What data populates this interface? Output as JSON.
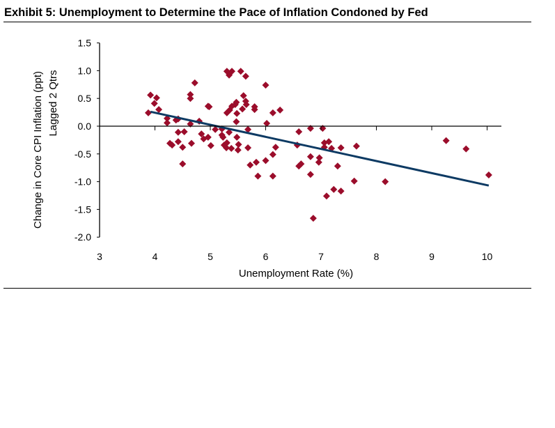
{
  "title": "Exhibit 5: Unemployment to Determine the Pace of Inflation Condoned by Fed",
  "chart_data": {
    "type": "scatter",
    "title": "Exhibit 5: Unemployment to Determine the Pace of Inflation Condoned by Fed",
    "xlabel": "Unemployment Rate (%)",
    "ylabel": [
      "Change in Core CPI Inflation (ppt)",
      "Lagged 2 Qtrs"
    ],
    "xlim": [
      3,
      10
    ],
    "ylim": [
      -2.0,
      1.5
    ],
    "xticks": [
      "3",
      "4",
      "5",
      "6",
      "7",
      "8",
      "9",
      "10"
    ],
    "yticks": [
      "1.5",
      "1.0",
      "0.5",
      "0.0",
      "-0.5",
      "-1.0",
      "-1.5",
      "-2.0"
    ],
    "grid": false,
    "marker_color": "#9b0d2b",
    "trend_color": "#0d3a63",
    "points": [
      [
        3.92,
        0.56
      ],
      [
        4.03,
        0.51
      ],
      [
        3.99,
        0.41
      ],
      [
        4.07,
        0.3
      ],
      [
        3.88,
        0.24
      ],
      [
        4.22,
        0.14
      ],
      [
        4.22,
        0.06
      ],
      [
        4.38,
        0.11
      ],
      [
        4.42,
        0.13
      ],
      [
        4.64,
        0.57
      ],
      [
        4.64,
        0.5
      ],
      [
        4.72,
        0.78
      ],
      [
        4.8,
        0.09
      ],
      [
        4.96,
        0.36
      ],
      [
        4.98,
        0.35
      ],
      [
        4.64,
        0.04
      ],
      [
        4.42,
        -0.11
      ],
      [
        4.53,
        -0.1
      ],
      [
        4.27,
        -0.31
      ],
      [
        4.31,
        -0.34
      ],
      [
        4.42,
        -0.28
      ],
      [
        4.5,
        -0.38
      ],
      [
        4.66,
        -0.31
      ],
      [
        4.5,
        -0.68
      ],
      [
        4.84,
        -0.14
      ],
      [
        4.88,
        -0.23
      ],
      [
        4.96,
        -0.2
      ],
      [
        5.01,
        -0.35
      ],
      [
        5.09,
        -0.06
      ],
      [
        5.21,
        -0.05
      ],
      [
        5.21,
        -0.16
      ],
      [
        5.23,
        -0.2
      ],
      [
        5.25,
        -0.34
      ],
      [
        5.29,
        -0.39
      ],
      [
        5.3,
        -0.3
      ],
      [
        5.34,
        -0.11
      ],
      [
        5.38,
        -0.4
      ],
      [
        5.5,
        -0.43
      ],
      [
        5.51,
        -0.33
      ],
      [
        5.48,
        -0.2
      ],
      [
        5.3,
        0.99
      ],
      [
        5.34,
        0.92
      ],
      [
        5.39,
        0.99
      ],
      [
        5.55,
        0.99
      ],
      [
        5.64,
        0.9
      ],
      [
        5.3,
        0.24
      ],
      [
        5.35,
        0.29
      ],
      [
        5.39,
        0.36
      ],
      [
        5.45,
        0.39
      ],
      [
        5.47,
        0.43
      ],
      [
        5.48,
        0.23
      ],
      [
        5.47,
        0.08
      ],
      [
        5.6,
        0.55
      ],
      [
        5.64,
        0.45
      ],
      [
        5.65,
        0.39
      ],
      [
        5.58,
        0.31
      ],
      [
        5.8,
        0.3
      ],
      [
        5.8,
        0.35
      ],
      [
        6.0,
        0.74
      ],
      [
        6.02,
        0.05
      ],
      [
        6.13,
        0.24
      ],
      [
        6.26,
        0.29
      ],
      [
        5.68,
        -0.06
      ],
      [
        5.68,
        -0.39
      ],
      [
        5.72,
        -0.7
      ],
      [
        5.83,
        -0.65
      ],
      [
        5.86,
        -0.9
      ],
      [
        6.0,
        -0.62
      ],
      [
        6.13,
        -0.51
      ],
      [
        6.18,
        -0.38
      ],
      [
        6.13,
        -0.9
      ],
      [
        6.57,
        -0.34
      ],
      [
        6.6,
        -0.1
      ],
      [
        6.6,
        -0.72
      ],
      [
        6.64,
        -0.68
      ],
      [
        6.81,
        -0.04
      ],
      [
        6.81,
        -0.55
      ],
      [
        6.81,
        -0.87
      ],
      [
        6.86,
        -1.66
      ],
      [
        6.97,
        -0.57
      ],
      [
        6.96,
        -0.65
      ],
      [
        7.03,
        -0.04
      ],
      [
        7.06,
        -0.38
      ],
      [
        7.06,
        -0.3
      ],
      [
        7.14,
        -0.28
      ],
      [
        7.19,
        -0.4
      ],
      [
        7.1,
        -1.26
      ],
      [
        7.23,
        -1.14
      ],
      [
        7.3,
        -0.72
      ],
      [
        7.36,
        -1.17
      ],
      [
        7.36,
        -0.39
      ],
      [
        7.64,
        -0.36
      ],
      [
        7.6,
        -0.99
      ],
      [
        8.16,
        -1.0
      ],
      [
        9.26,
        -0.26
      ],
      [
        9.62,
        -0.41
      ],
      [
        10.03,
        -0.88
      ]
    ],
    "trend_line": [
      [
        3.92,
        0.26
      ],
      [
        10.03,
        -1.07
      ]
    ]
  }
}
